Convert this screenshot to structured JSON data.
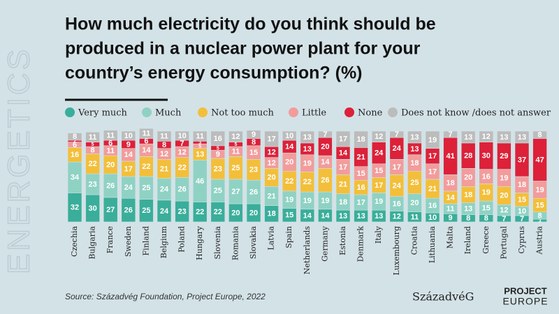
{
  "chart_data": {
    "type": "stacked-bar",
    "title": [
      "How much electricity do you think should be",
      "produced in a nuclear power plant for your",
      "country’s energy consumption? (%)"
    ],
    "side_label": "ENERGETICS",
    "source": "Source: Századvég Foundation, Project Europe, 2022",
    "logos": [
      "SzázadvéG",
      "PROJECT",
      "EUROPE"
    ],
    "categories": [
      "Czechia",
      "Bulgaria",
      "France",
      "Sweden",
      "Finland",
      "Belgium",
      "Poland",
      "Hungary",
      "Slovenia",
      "Romania",
      "Slovakia",
      "Latvia",
      "Spain",
      "Netherlands",
      "Germany",
      "Estonia",
      "Denmark",
      "Italy",
      "Luxembourg",
      "Croatia",
      "Lithuania",
      "Malta",
      "Ireland",
      "Greece",
      "Portugal",
      "Cyprus",
      "Austria"
    ],
    "series": [
      {
        "name": "Very much",
        "color": "#3aae9a",
        "values": [
          32,
          30,
          27,
          26,
          25,
          24,
          23,
          22,
          22,
          20,
          20,
          18,
          15,
          14,
          14,
          13,
          13,
          13,
          12,
          11,
          10,
          9,
          8,
          8,
          7,
          7,
          3
        ]
      },
      {
        "name": "Much",
        "color": "#8fd2c4",
        "values": [
          34,
          23,
          26,
          24,
          25,
          24,
          26,
          46,
          25,
          27,
          26,
          21,
          19,
          19,
          19,
          18,
          17,
          19,
          16,
          20,
          16,
          11,
          13,
          15,
          12,
          10,
          8
        ]
      },
      {
        "name": "Not too much",
        "color": "#f3bf3a",
        "values": [
          16,
          22,
          20,
          17,
          22,
          21,
          22,
          13,
          23,
          25,
          23,
          20,
          22,
          22,
          26,
          21,
          16,
          17,
          24,
          25,
          21,
          14,
          18,
          19,
          20,
          15,
          15
        ]
      },
      {
        "name": "Little",
        "color": "#f29c9c",
        "values": [
          6,
          8,
          11,
          14,
          14,
          12,
          12,
          5,
          9,
          11,
          15,
          12,
          20,
          19,
          14,
          17,
          15,
          15,
          17,
          18,
          17,
          18,
          20,
          16,
          19,
          18,
          19
        ]
      },
      {
        "name": "None",
        "color": "#dc2139",
        "values": [
          2,
          5,
          6,
          9,
          6,
          8,
          7,
          3,
          5,
          5,
          8,
          12,
          14,
          13,
          20,
          14,
          21,
          24,
          24,
          13,
          17,
          41,
          28,
          30,
          29,
          37,
          47
        ]
      },
      {
        "name": "Does not know /does not answer",
        "color": "#bcbcbc",
        "values": [
          8,
          11,
          11,
          10,
          11,
          11,
          10,
          11,
          16,
          12,
          9,
          17,
          10,
          13,
          7,
          17,
          18,
          12,
          7,
          13,
          19,
          7,
          13,
          12,
          13,
          13,
          8
        ]
      }
    ]
  }
}
